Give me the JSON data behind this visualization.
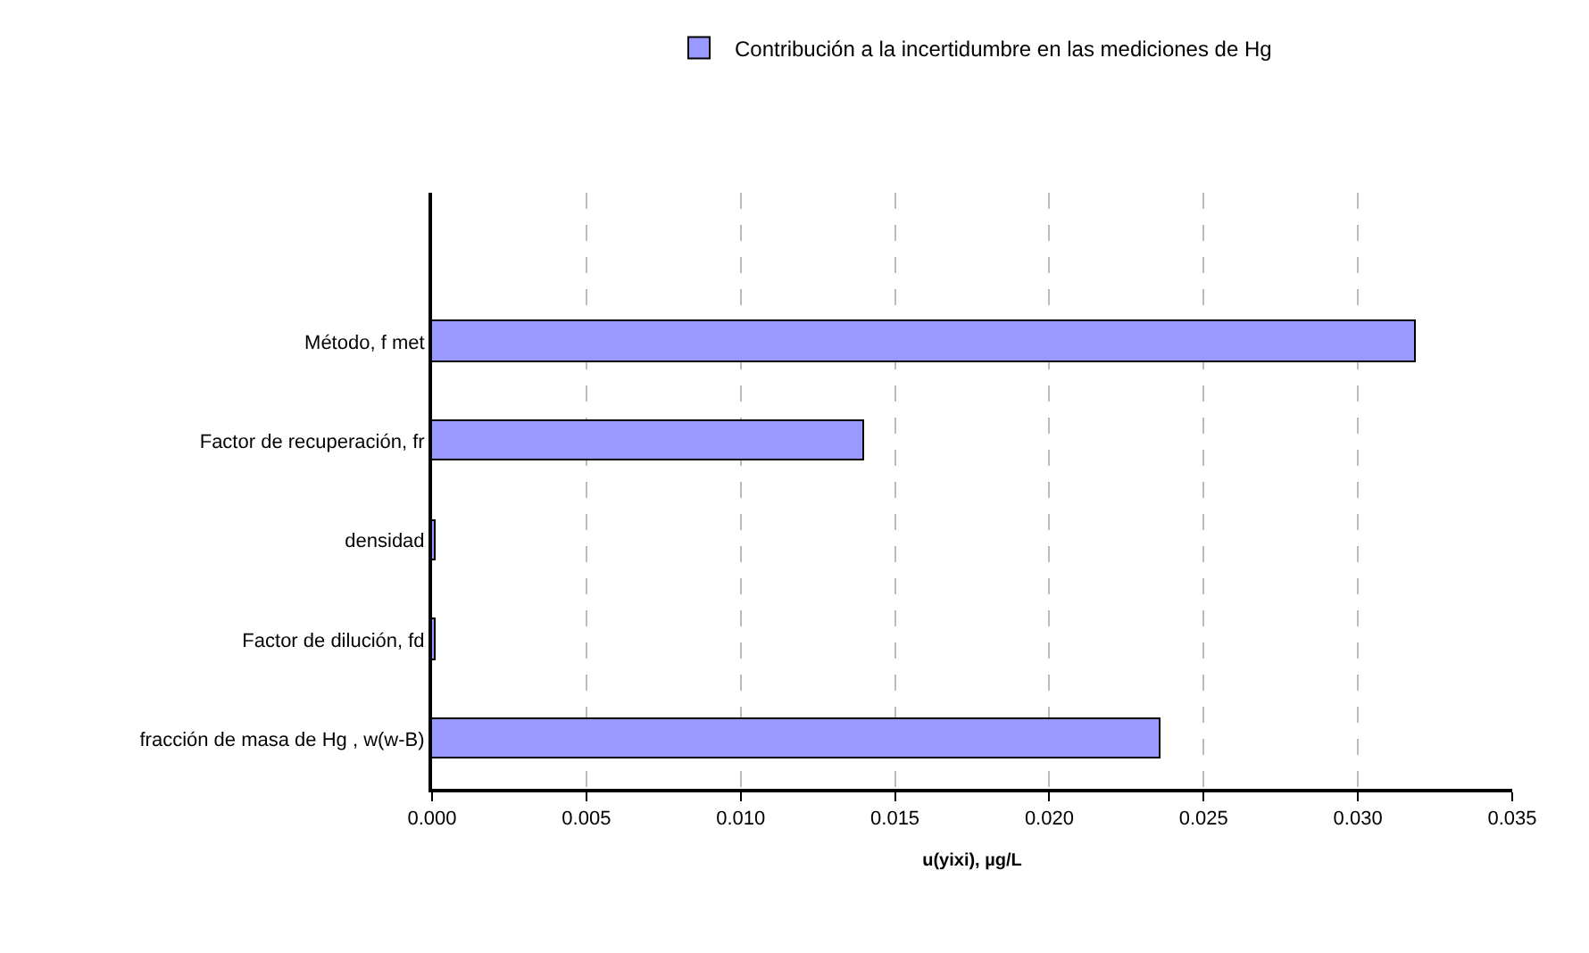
{
  "chart_data": {
    "type": "bar",
    "orientation": "horizontal",
    "xlabel": "u(yixi), µg/L",
    "categories": [
      null,
      "Método, f met",
      "Factor de recuperación, fr",
      "densidad",
      "Factor de dilución, fd",
      "fracción de masa de Hg , w(w-B)"
    ],
    "series": [
      {
        "name": "Contribución a la incertidumbre en las mediciones de Hg",
        "color": "#9999ff",
        "values": [
          null,
          0.0319,
          0.014,
          0.0001,
          0.0001,
          0.0236
        ]
      }
    ],
    "xlim": [
      0,
      0.035
    ],
    "xticks": [
      {
        "value": 0,
        "label": "0.000"
      },
      {
        "value": 0.005,
        "label": "0.005"
      },
      {
        "value": 0.01,
        "label": "0.010"
      },
      {
        "value": 0.015,
        "label": "0.015"
      },
      {
        "value": 0.02,
        "label": "0.020"
      },
      {
        "value": 0.025,
        "label": "0.025"
      },
      {
        "value": 0.03,
        "label": "0.030"
      },
      {
        "value": 0.035,
        "label": "0.035"
      }
    ],
    "grid": "x",
    "legend": "top"
  }
}
